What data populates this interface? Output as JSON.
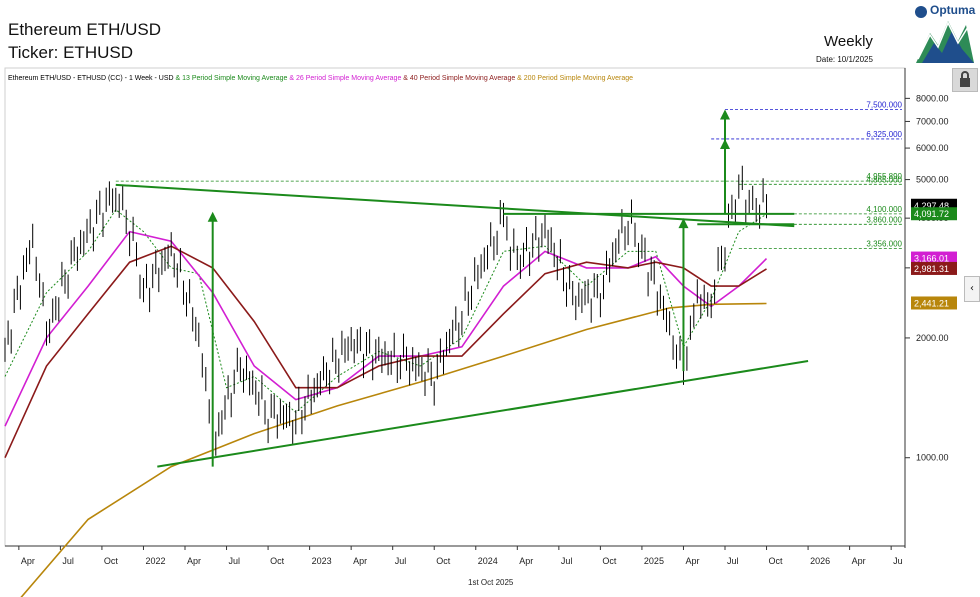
{
  "header": {
    "title_line1": "Ethereum ETH/USD",
    "title_line2": "Ticker: ETHUSD",
    "period": "Weekly",
    "date": "Date: 10/1/2025",
    "brand": "Optuma",
    "brand_icon": "optuma-logo-icon",
    "lock_icon": "lock-icon",
    "expand_icon": "chevron-left-icon"
  },
  "legend": [
    {
      "text": "Ethereum ETH/USD - ETHUSD (CC) - 1 Week - USD",
      "color": "#000000"
    },
    {
      "text": " & 13 Period Simple Moving Average",
      "color": "#1b8a1b"
    },
    {
      "text": " & 26 Period Simple Moving Average",
      "color": "#d21fd2"
    },
    {
      "text": " & 40 Period Simple Moving Average",
      "color": "#8b1a1a"
    },
    {
      "text": " & 200 Period Simple Moving Average",
      "color": "#b8860b"
    }
  ],
  "footer_date": "1st Oct 2025",
  "chart_data": {
    "type": "line",
    "x_axis_labels": [
      "Apr",
      "Jul",
      "Oct",
      "2022",
      "Apr",
      "Jul",
      "Oct",
      "2023",
      "Apr",
      "Jul",
      "Oct",
      "2024",
      "Apr",
      "Jul",
      "Oct",
      "2025",
      "Apr",
      "Jul",
      "Oct",
      "2026",
      "Apr",
      "Ju"
    ],
    "y_ticks": [
      1000,
      2000,
      3000,
      4000,
      5000,
      6000,
      7000,
      8000
    ],
    "y_tick_labels": [
      "1000.00",
      "2000.00",
      "3000.00",
      "4000.00",
      "5000.00",
      "6000.00",
      "7000.00",
      "8000.00"
    ],
    "ylim": [
      600,
      8300
    ],
    "price_series": [
      [
        "2021-03",
        1800
      ],
      [
        "2021-05",
        3500
      ],
      [
        "2021-06",
        2000
      ],
      [
        "2021-08",
        3200
      ],
      [
        "2021-11",
        4700
      ],
      [
        "2021-12",
        3800
      ],
      [
        "2022-01",
        2600
      ],
      [
        "2022-03",
        3300
      ],
      [
        "2022-05",
        2000
      ],
      [
        "2022-06",
        1050
      ],
      [
        "2022-08",
        1700
      ],
      [
        "2022-10",
        1300
      ],
      [
        "2022-12",
        1250
      ],
      [
        "2023-02",
        1600
      ],
      [
        "2023-04",
        1950
      ],
      [
        "2023-06",
        1800
      ],
      [
        "2023-08",
        1750
      ],
      [
        "2023-10",
        1600
      ],
      [
        "2023-12",
        2300
      ],
      [
        "2024-03",
        3900
      ],
      [
        "2024-04",
        3100
      ],
      [
        "2024-06",
        3700
      ],
      [
        "2024-08",
        2500
      ],
      [
        "2024-10",
        2600
      ],
      [
        "2024-12",
        4000
      ],
      [
        "2025-01",
        3300
      ],
      [
        "2025-03",
        2100
      ],
      [
        "2025-04",
        1600
      ],
      [
        "2025-05",
        2500
      ],
      [
        "2025-06",
        2500
      ],
      [
        "2025-07",
        3500
      ],
      [
        "2025-08",
        4800
      ],
      [
        "2025-09",
        4300
      ],
      [
        "2025-10",
        4297.48
      ]
    ],
    "series": [
      {
        "name": "13 Period Simple Moving Average",
        "color": "#1b8a1b",
        "values": [
          [
            "2021-03",
            1600
          ],
          [
            "2021-06",
            2600
          ],
          [
            "2021-09",
            3300
          ],
          [
            "2021-11",
            4200
          ],
          [
            "2022-01",
            3700
          ],
          [
            "2022-03",
            3000
          ],
          [
            "2022-05",
            2900
          ],
          [
            "2022-07",
            1500
          ],
          [
            "2022-09",
            1600
          ],
          [
            "2022-12",
            1300
          ],
          [
            "2023-03",
            1600
          ],
          [
            "2023-06",
            1850
          ],
          [
            "2023-09",
            1700
          ],
          [
            "2023-12",
            2000
          ],
          [
            "2024-03",
            3300
          ],
          [
            "2024-06",
            3400
          ],
          [
            "2024-09",
            2700
          ],
          [
            "2024-12",
            3300
          ],
          [
            "2025-02",
            3300
          ],
          [
            "2025-04",
            1900
          ],
          [
            "2025-06",
            2500
          ],
          [
            "2025-08",
            3700
          ],
          [
            "2025-10",
            4091.72
          ]
        ]
      },
      {
        "name": "26 Period Simple Moving Average",
        "color": "#d21fd2",
        "values": [
          [
            "2021-03",
            1200
          ],
          [
            "2021-06",
            2000
          ],
          [
            "2021-09",
            2700
          ],
          [
            "2021-12",
            3700
          ],
          [
            "2022-03",
            3500
          ],
          [
            "2022-06",
            2600
          ],
          [
            "2022-09",
            1700
          ],
          [
            "2022-12",
            1400
          ],
          [
            "2023-03",
            1500
          ],
          [
            "2023-06",
            1800
          ],
          [
            "2023-09",
            1800
          ],
          [
            "2023-12",
            1900
          ],
          [
            "2024-03",
            2700
          ],
          [
            "2024-06",
            3300
          ],
          [
            "2024-09",
            3000
          ],
          [
            "2024-12",
            3000
          ],
          [
            "2025-02",
            3200
          ],
          [
            "2025-04",
            2700
          ],
          [
            "2025-06",
            2400
          ],
          [
            "2025-08",
            2700
          ],
          [
            "2025-10",
            3166.01
          ]
        ]
      },
      {
        "name": "40 Period Simple Moving Average",
        "color": "#8b1a1a",
        "values": [
          [
            "2021-03",
            1000
          ],
          [
            "2021-06",
            1700
          ],
          [
            "2021-09",
            2300
          ],
          [
            "2021-12",
            3100
          ],
          [
            "2022-03",
            3400
          ],
          [
            "2022-06",
            3000
          ],
          [
            "2022-09",
            2200
          ],
          [
            "2022-12",
            1500
          ],
          [
            "2023-03",
            1500
          ],
          [
            "2023-06",
            1700
          ],
          [
            "2023-09",
            1800
          ],
          [
            "2023-12",
            1800
          ],
          [
            "2024-03",
            2300
          ],
          [
            "2024-06",
            2900
          ],
          [
            "2024-09",
            3100
          ],
          [
            "2024-12",
            3000
          ],
          [
            "2025-02",
            3100
          ],
          [
            "2025-04",
            3000
          ],
          [
            "2025-06",
            2700
          ],
          [
            "2025-08",
            2700
          ],
          [
            "2025-10",
            2981.31
          ]
        ]
      },
      {
        "name": "200 Period Simple Moving Average",
        "color": "#b8860b",
        "values": [
          [
            "2021-03",
            400
          ],
          [
            "2021-09",
            700
          ],
          [
            "2022-03",
            950
          ],
          [
            "2022-09",
            1150
          ],
          [
            "2023-03",
            1350
          ],
          [
            "2023-09",
            1550
          ],
          [
            "2024-03",
            1800
          ],
          [
            "2024-09",
            2100
          ],
          [
            "2025-03",
            2380
          ],
          [
            "2025-06",
            2430
          ],
          [
            "2025-10",
            2441.21
          ]
        ]
      }
    ],
    "price_labels": [
      {
        "text": "4,297.48",
        "value": 4297.48,
        "bg": "#000000",
        "fg": "#ffffff"
      },
      {
        "text": "4,091.72",
        "value": 4091.72,
        "bg": "#1b8a1b",
        "fg": "#ffffff"
      },
      {
        "text": "3,166.01",
        "value": 3166.01,
        "bg": "#d21fd2",
        "fg": "#ffffff"
      },
      {
        "text": "2,981.31",
        "value": 2981.31,
        "bg": "#8b1a1a",
        "fg": "#ffffff"
      },
      {
        "text": "2,441.21",
        "value": 2441.21,
        "bg": "#b8860b",
        "fg": "#ffffff"
      }
    ],
    "levels": [
      {
        "text": "7,500.000",
        "value": 7500,
        "color": "#1f1fd0",
        "from": "2025-07"
      },
      {
        "text": "6,325.000",
        "value": 6325,
        "color": "#1f1fd0",
        "from": "2025-06"
      },
      {
        "text": "4,955.890",
        "value": 4955.89,
        "color": "#1b8a1b",
        "from": "2021-11"
      },
      {
        "text": "4,865.000",
        "value": 4865,
        "color": "#1b8a1b",
        "from": "2025-08"
      },
      {
        "text": "4,100.000",
        "value": 4100,
        "color": "#1b8a1b",
        "from": "2025-08"
      },
      {
        "text": "3,860.000",
        "value": 3860,
        "color": "#1b8a1b",
        "from": "2025-08"
      },
      {
        "text": "3,356.000",
        "value": 3356,
        "color": "#1b8a1b",
        "from": "2025-08"
      }
    ],
    "trendlines": [
      {
        "from": [
          "2021-11",
          4850
        ],
        "to": [
          "2025-12",
          3820
        ]
      },
      {
        "from": [
          "2022-02",
          950
        ],
        "to": [
          "2026-01",
          1750
        ]
      },
      {
        "from": [
          "2024-03",
          4100
        ],
        "to": [
          "2025-12",
          4100
        ]
      },
      {
        "from": [
          "2025-05",
          3860
        ],
        "to": [
          "2025-12",
          3860
        ]
      }
    ],
    "arrows": [
      {
        "x": "2022-06",
        "from": 950,
        "to": 4150
      },
      {
        "x": "2025-04",
        "from": 1650,
        "to": 4000
      },
      {
        "x": "2025-07",
        "from": 4100,
        "to": 6325
      },
      {
        "x": "2025-07",
        "from": 4100,
        "to": 7500
      }
    ],
    "grid": false,
    "legend_position": "top-left"
  }
}
